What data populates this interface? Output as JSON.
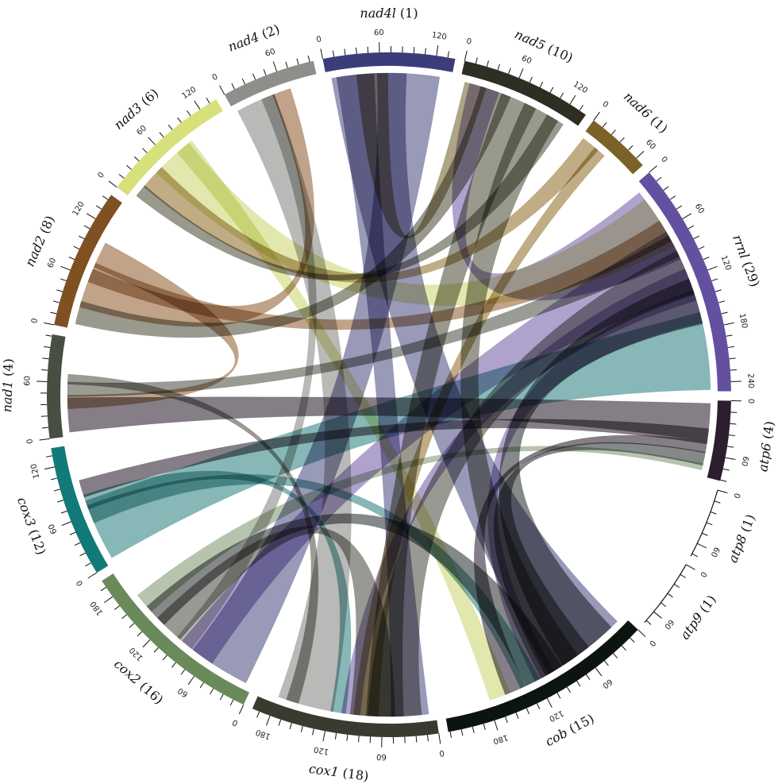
{
  "chart_data": {
    "type": "chord",
    "segments": [
      {
        "gene": "nad4l",
        "count": "(1)",
        "color": "#3b3d7a",
        "length": 140,
        "ticks": [
          0,
          60,
          120
        ]
      },
      {
        "gene": "nad5",
        "count": "(10)",
        "color": "#2e2e22",
        "length": 140,
        "ticks": [
          0,
          60,
          120
        ]
      },
      {
        "gene": "nad6",
        "count": "(1)",
        "color": "#7a6228",
        "length": 70,
        "ticks": [
          0,
          60
        ]
      },
      {
        "gene": "rrnl",
        "count": "(29)",
        "color": "#6450a0",
        "length": 250,
        "ticks": [
          0,
          60,
          120,
          180,
          240
        ]
      },
      {
        "gene": "atp6",
        "count": "(4)",
        "color": "#2c1e2e",
        "length": 85,
        "ticks": [
          0,
          60
        ]
      },
      {
        "gene": "atp8",
        "count": "(1)",
        "color": "#ffffff",
        "length": 75,
        "ticks": [
          0,
          60
        ]
      },
      {
        "gene": "atp9",
        "count": "(1)",
        "color": "#ffffff",
        "length": 75,
        "ticks": [
          0,
          60
        ]
      },
      {
        "gene": "cob",
        "count": "(15)",
        "color": "#0c1412",
        "length": 230,
        "ticks": [
          0,
          60,
          120,
          180
        ]
      },
      {
        "gene": "cox1",
        "count": "(18)",
        "color": "#3a3a2e",
        "length": 200,
        "ticks": [
          0,
          60,
          120,
          180
        ]
      },
      {
        "gene": "cox2",
        "count": "(16)",
        "color": "#6a8a5a",
        "length": 200,
        "ticks": [
          0,
          60,
          120,
          180
        ]
      },
      {
        "gene": "cox3",
        "count": "(12)",
        "color": "#127a78",
        "length": 140,
        "ticks": [
          0,
          60,
          120
        ]
      },
      {
        "gene": "nad1",
        "count": "(4)",
        "color": "#474f42",
        "length": 110,
        "ticks": [
          0,
          60
        ]
      },
      {
        "gene": "nad2",
        "count": "(8)",
        "color": "#7e5022",
        "length": 150,
        "ticks": [
          0,
          60,
          120
        ]
      },
      {
        "gene": "nad3",
        "count": "(6)",
        "color": "#d8e07c",
        "length": 140,
        "ticks": [
          0,
          60,
          120
        ]
      },
      {
        "gene": "nad4",
        "count": "(2)",
        "color": "#8e8e8a",
        "length": 100,
        "ticks": [
          0,
          60
        ]
      }
    ],
    "links": [
      {
        "source": "nad4l",
        "target": "cob",
        "color": "#5a5a8c",
        "weight": 0.6
      },
      {
        "source": "nad4l",
        "target": "cox2",
        "color": "#5a5a8c",
        "weight": 0.5
      },
      {
        "source": "nad4l",
        "target": "cox1",
        "color": "#5a5a8c",
        "weight": 0.3
      },
      {
        "source": "nad4l",
        "target": "nad5",
        "color": "#7a6e3a",
        "weight": 0.25
      },
      {
        "source": "nad5",
        "target": "nad2",
        "color": "#5a5a48",
        "weight": 0.25
      },
      {
        "source": "nad5",
        "target": "cox1",
        "color": "#5a5a48",
        "weight": 0.3
      },
      {
        "source": "nad5",
        "target": "cob",
        "color": "#5a5a48",
        "weight": 0.3
      },
      {
        "source": "nad5",
        "target": "nad3",
        "color": "#5a5a48",
        "weight": 0.15
      },
      {
        "source": "nad6",
        "target": "nad3",
        "color": "#9a7a3a",
        "weight": 0.3
      },
      {
        "source": "nad6",
        "target": "cox1",
        "color": "#9a7a3a",
        "weight": 0.2
      },
      {
        "source": "rrnl",
        "target": "nad5",
        "color": "#7e6ab0",
        "weight": 0.35
      },
      {
        "source": "rrnl",
        "target": "cox2",
        "color": "#7e6ab0",
        "weight": 0.3
      },
      {
        "source": "rrnl",
        "target": "cox1",
        "color": "#7e6ab0",
        "weight": 0.15
      },
      {
        "source": "rrnl",
        "target": "cob",
        "color": "#7e6ab0",
        "weight": 0.15
      },
      {
        "source": "cox3",
        "target": "rrnl",
        "color": "#3e8a8a",
        "weight": 0.5
      },
      {
        "source": "cox3",
        "target": "cob",
        "color": "#3e8a8a",
        "weight": 0.15
      },
      {
        "source": "cox3",
        "target": "cox1",
        "color": "#3e8a8a",
        "weight": 0.12
      },
      {
        "source": "atp6",
        "target": "nad1",
        "color": "#3a2e3e",
        "weight": 0.5
      },
      {
        "source": "atp6",
        "target": "cox3",
        "color": "#3a2e3e",
        "weight": 0.2
      },
      {
        "source": "atp6",
        "target": "cob",
        "color": "#3a2e3e",
        "weight": 0.15
      },
      {
        "source": "nad4",
        "target": "cox1",
        "color": "#8e8e8a",
        "weight": 0.45
      },
      {
        "source": "nad4",
        "target": "cox2",
        "color": "#8e8e8a",
        "weight": 0.15
      },
      {
        "source": "nad3",
        "target": "rrnl",
        "color": "#d0da7a",
        "weight": 0.35
      },
      {
        "source": "nad3",
        "target": "cob",
        "color": "#d0da7a",
        "weight": 0.15
      },
      {
        "source": "nad2",
        "target": "nad4",
        "color": "#9a6a40",
        "weight": 0.3
      },
      {
        "source": "nad2",
        "target": "rrnl",
        "color": "#9a6a40",
        "weight": 0.15
      },
      {
        "source": "nad2",
        "target": "nad1",
        "color": "#9a6a40",
        "weight": 0.2
      },
      {
        "source": "nad1",
        "target": "rrnl",
        "color": "#5a5e52",
        "weight": 0.15
      },
      {
        "source": "nad1",
        "target": "cox1",
        "color": "#5a5e52",
        "weight": 0.1
      },
      {
        "source": "cox1",
        "target": "rrnl",
        "color": "#5a5a50",
        "weight": 0.3
      },
      {
        "source": "cox1",
        "target": "cox2",
        "color": "#5a5a50",
        "weight": 0.25
      },
      {
        "source": "cob",
        "target": "rrnl",
        "color": "#3c4040",
        "weight": 0.3
      },
      {
        "source": "cob",
        "target": "atp6",
        "color": "#3c4040",
        "weight": 0.25
      },
      {
        "source": "cob",
        "target": "cox2",
        "color": "#3c4040",
        "weight": 0.2
      },
      {
        "source": "cox2",
        "target": "atp6",
        "color": "#8aa07a",
        "weight": 0.12
      }
    ]
  }
}
